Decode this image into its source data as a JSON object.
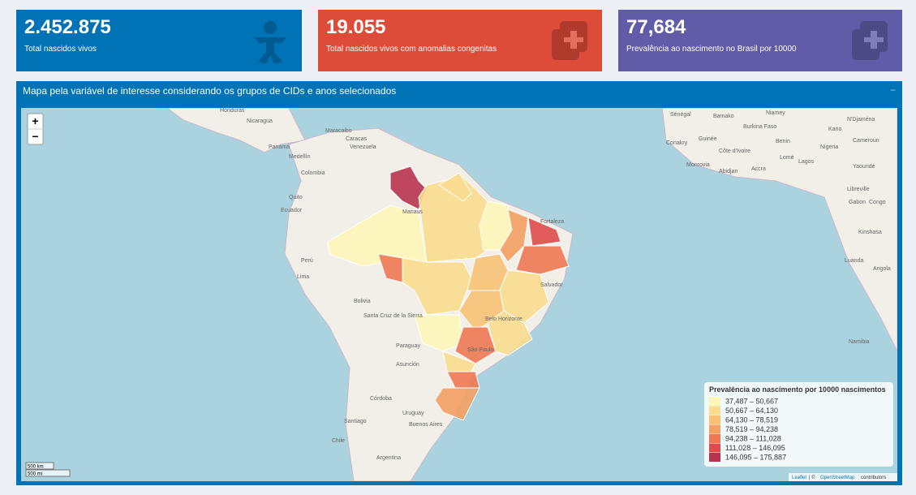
{
  "value_boxes": [
    {
      "value": "2.452.875",
      "label": "Total nascidos vivos",
      "color": "#0073b7"
    },
    {
      "value": "19.055",
      "label": "Total nascidos vivos com anomalias congenitas",
      "color": "#dd4b39"
    },
    {
      "value": "77,684",
      "label": "Prevalência ao nascimento no Brasil por 10000",
      "color": "#605ca8"
    }
  ],
  "map_box": {
    "title": "Mapa pela variável de interesse considerando os grupos de CIDs e anos selecionados",
    "collapse": "−"
  },
  "map": {
    "zoom_in": "+",
    "zoom_out": "−",
    "legend": {
      "title": "Prevalência ao nascimento por 10000 nascimentos",
      "items": [
        {
          "label": "37,487 – 50,667",
          "color": "#fdf6b9"
        },
        {
          "label": "50,667 – 64,130",
          "color": "#fadb8f"
        },
        {
          "label": "64,130 – 78,519",
          "color": "#f7c275"
        },
        {
          "label": "78,519 – 94,238",
          "color": "#f4a063"
        },
        {
          "label": "94,238 – 111,028",
          "color": "#ee7854"
        },
        {
          "label": "111,028 – 146,095",
          "color": "#df4a4a"
        },
        {
          "label": "146,095 – 175,887",
          "color": "#b8334f"
        }
      ]
    },
    "scale": [
      "500 km",
      "500 mi"
    ],
    "attribution": {
      "leaflet": "Leaflet",
      "separator": "| ©",
      "osm": "OpenStreetMap",
      "suffix": "contributors"
    },
    "labels": [
      "Honduras",
      "Nicaragua",
      "Panamá",
      "Maracaibo",
      "Caracas",
      "Venezuela",
      "Medellín",
      "Colombia",
      "Quito",
      "Ecuador",
      "Perú",
      "Lima",
      "Manaus",
      "Bolivia",
      "Santa Cruz de la Sierra",
      "Paraguay",
      "Asunción",
      "Córdoba",
      "Santiago",
      "Chile",
      "Buenos Aires",
      "Uruguay",
      "Argentina",
      "Fortaleza",
      "Salvador",
      "Belo Horizonte",
      "São Paulo",
      "Sénégal",
      "Bamako",
      "Niamey",
      "Burkina Faso",
      "Guinée",
      "Conakry",
      "Monrovia",
      "Côte d'Ivoire",
      "Abidjan",
      "Accra",
      "Lomé",
      "Lagos",
      "Nigeria",
      "Benin",
      "Kano",
      "N'Djaména",
      "Cameroun",
      "Yaoundé",
      "Libreville",
      "Gabon",
      "Congo",
      "Kinshasa",
      "Luanda",
      "Angola",
      "Namibia"
    ]
  }
}
